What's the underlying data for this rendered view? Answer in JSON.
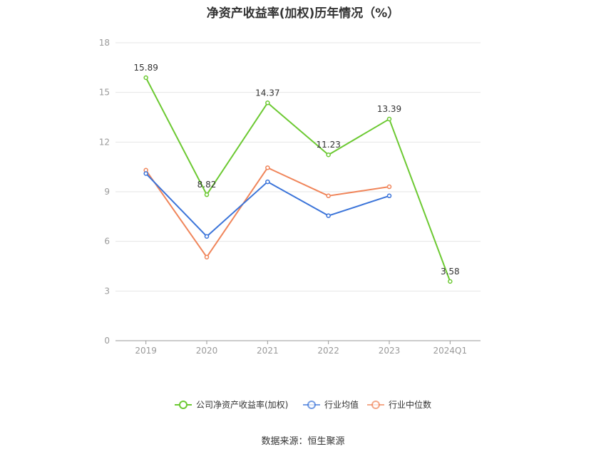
{
  "chart_data": {
    "type": "line",
    "title": "净资产收益率(加权)历年情况（%）",
    "categories": [
      "2019",
      "2020",
      "2021",
      "2022",
      "2023",
      "2024Q1"
    ],
    "ylim": [
      0,
      18
    ],
    "yticks": [
      0,
      3,
      6,
      9,
      12,
      15,
      18
    ],
    "grid": true,
    "legend_position": "bottom",
    "series": [
      {
        "name": "公司净资产收益率(加权)",
        "color": "#6cc932",
        "values": [
          15.89,
          8.82,
          14.37,
          11.23,
          13.39,
          3.58
        ],
        "labels": [
          "15.89",
          "8.82",
          "14.37",
          "11.23",
          "13.39",
          "3.58"
        ]
      },
      {
        "name": "行业均值",
        "color": "#3b74d9",
        "values": [
          10.1,
          6.3,
          9.6,
          7.55,
          8.75,
          null
        ]
      },
      {
        "name": "行业中位数",
        "color": "#f0855a",
        "values": [
          10.3,
          5.05,
          10.45,
          8.75,
          9.3,
          null
        ]
      }
    ]
  },
  "source": "数据来源：恒生聚源"
}
